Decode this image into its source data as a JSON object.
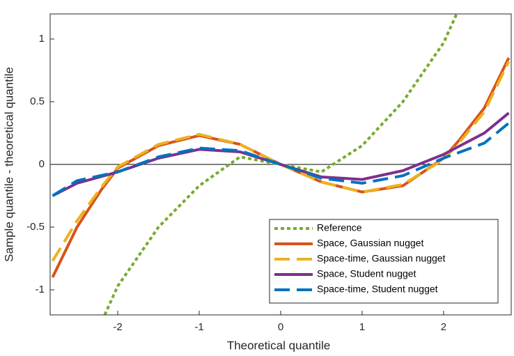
{
  "chart_data": {
    "type": "line",
    "xlabel": "Theoretical quantile",
    "ylabel": "Sample quantile - theoretical quantile",
    "xlim": [
      -2.83,
      2.83
    ],
    "ylim": [
      -1.2,
      1.2
    ],
    "xticks": [
      -2,
      -1,
      0,
      1,
      2
    ],
    "yticks": [
      -1,
      -0.5,
      0,
      0.5,
      1
    ],
    "hline": 0,
    "legend": "lower right",
    "series": [
      {
        "name": "Reference",
        "color": "#77ac30",
        "dash": "dotted",
        "x": [
          -2.16,
          -2,
          -1.5,
          -1,
          -0.5,
          0,
          0.5,
          1,
          1.5,
          2,
          2.16
        ],
        "values": [
          -1.2,
          -0.97,
          -0.5,
          -0.17,
          0.06,
          0,
          -0.06,
          0.15,
          0.5,
          0.97,
          1.2
        ]
      },
      {
        "name": "Space, Gaussian nugget",
        "color": "#d95319",
        "dash": "solid",
        "x": [
          -2.8,
          -2.5,
          -2.2,
          -2,
          -1.5,
          -1,
          -0.5,
          0,
          0.5,
          1,
          1.5,
          2,
          2.2,
          2.5,
          2.8
        ],
        "values": [
          -0.9,
          -0.5,
          -0.2,
          -0.03,
          0.15,
          0.23,
          0.16,
          0,
          -0.14,
          -0.22,
          -0.17,
          0.05,
          0.2,
          0.45,
          0.85
        ]
      },
      {
        "name": "Space-time, Gaussian nugget",
        "color": "#edb120",
        "dash": "dashed",
        "x": [
          -2.8,
          -2.5,
          -2.2,
          -2,
          -1.5,
          -1,
          -0.5,
          0,
          0.5,
          1,
          1.5,
          2,
          2.2,
          2.5,
          2.8
        ],
        "values": [
          -0.77,
          -0.45,
          -0.18,
          -0.02,
          0.16,
          0.24,
          0.16,
          0,
          -0.14,
          -0.22,
          -0.16,
          0.04,
          0.18,
          0.42,
          0.82
        ]
      },
      {
        "name": "Space, Student nugget",
        "color": "#7e2f8e",
        "dash": "solid",
        "x": [
          -2.8,
          -2.5,
          -2,
          -1.5,
          -1,
          -0.5,
          0,
          0.5,
          1,
          1.5,
          2,
          2.5,
          2.8
        ],
        "values": [
          -0.25,
          -0.15,
          -0.06,
          0.05,
          0.12,
          0.1,
          0,
          -0.1,
          -0.12,
          -0.05,
          0.08,
          0.25,
          0.41
        ]
      },
      {
        "name": "Space-time, Student nugget",
        "color": "#0072bd",
        "dash": "dashed",
        "x": [
          -2.8,
          -2.5,
          -2,
          -1.5,
          -1,
          -0.5,
          0,
          0.5,
          1,
          1.5,
          2,
          2.5,
          2.8
        ],
        "values": [
          -0.25,
          -0.13,
          -0.06,
          0.06,
          0.13,
          0.11,
          0,
          -0.11,
          -0.15,
          -0.09,
          0.05,
          0.17,
          0.33
        ]
      }
    ]
  }
}
